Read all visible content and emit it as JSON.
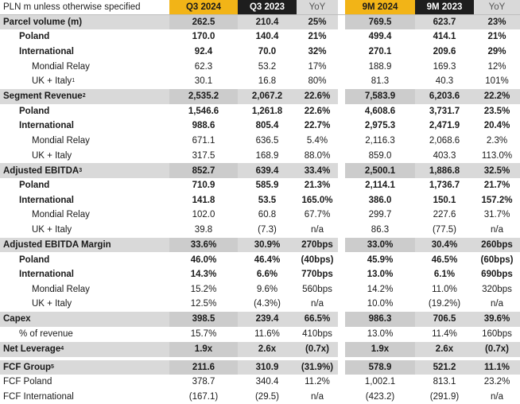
{
  "header": {
    "label": "PLN m unless otherwise specified",
    "q3_2024": "Q3 2024",
    "q3_2023": "Q3 2023",
    "yoy": "YoY",
    "m9_2024": "9M 2024",
    "m9_2023": "9M 2023",
    "yoy2": "YoY"
  },
  "rows": [
    {
      "kind": "section",
      "label": "Parcel volume (m)",
      "sup": "",
      "v": [
        "262.5",
        "210.4",
        "25%",
        "769.5",
        "623.7",
        "23%"
      ]
    },
    {
      "kind": "sub",
      "label": "Poland",
      "sup": "",
      "v": [
        "170.0",
        "140.4",
        "21%",
        "499.4",
        "414.1",
        "21%"
      ]
    },
    {
      "kind": "sub",
      "label": "International",
      "sup": "",
      "v": [
        "92.4",
        "70.0",
        "32%",
        "270.1",
        "209.6",
        "29%"
      ]
    },
    {
      "kind": "subsub",
      "label": "Mondial Relay",
      "sup": "",
      "v": [
        "62.3",
        "53.2",
        "17%",
        "188.9",
        "169.3",
        "12%"
      ]
    },
    {
      "kind": "subsub",
      "label": "UK + Italy",
      "sup": "1",
      "v": [
        "30.1",
        "16.8",
        "80%",
        "81.3",
        "40.3",
        "101%"
      ]
    },
    {
      "kind": "section",
      "label": "Segment Revenue",
      "sup": "2",
      "v": [
        "2,535.2",
        "2,067.2",
        "22.6%",
        "7,583.9",
        "6,203.6",
        "22.2%"
      ]
    },
    {
      "kind": "sub",
      "label": "Poland",
      "sup": "",
      "v": [
        "1,546.6",
        "1,261.8",
        "22.6%",
        "4,608.6",
        "3,731.7",
        "23.5%"
      ]
    },
    {
      "kind": "sub",
      "label": "International",
      "sup": "",
      "v": [
        "988.6",
        "805.4",
        "22.7%",
        "2,975.3",
        "2,471.9",
        "20.4%"
      ]
    },
    {
      "kind": "subsub",
      "label": "Mondial Relay",
      "sup": "",
      "v": [
        "671.1",
        "636.5",
        "5.4%",
        "2,116.3",
        "2,068.6",
        "2.3%"
      ]
    },
    {
      "kind": "subsub",
      "label": "UK + Italy",
      "sup": "",
      "v": [
        "317.5",
        "168.9",
        "88.0%",
        "859.0",
        "403.3",
        "113.0%"
      ]
    },
    {
      "kind": "section",
      "label": "Adjusted EBITDA",
      "sup": "3",
      "v": [
        "852.7",
        "639.4",
        "33.4%",
        "2,500.1",
        "1,886.8",
        "32.5%"
      ]
    },
    {
      "kind": "sub",
      "label": "Poland",
      "sup": "",
      "v": [
        "710.9",
        "585.9",
        "21.3%",
        "2,114.1",
        "1,736.7",
        "21.7%"
      ]
    },
    {
      "kind": "sub",
      "label": "International",
      "sup": "",
      "v": [
        "141.8",
        "53.5",
        "165.0%",
        "386.0",
        "150.1",
        "157.2%"
      ]
    },
    {
      "kind": "subsub",
      "label": "Mondial Relay",
      "sup": "",
      "v": [
        "102.0",
        "60.8",
        "67.7%",
        "299.7",
        "227.6",
        "31.7%"
      ]
    },
    {
      "kind": "subsub",
      "label": "UK + Italy",
      "sup": "",
      "v": [
        "39.8",
        "(7.3)",
        "n/a",
        "86.3",
        "(77.5)",
        "n/a"
      ]
    },
    {
      "kind": "section",
      "label": "Adjusted EBITDA Margin",
      "sup": "",
      "v": [
        "33.6%",
        "30.9%",
        "270bps",
        "33.0%",
        "30.4%",
        "260bps"
      ]
    },
    {
      "kind": "sub",
      "label": "Poland",
      "sup": "",
      "v": [
        "46.0%",
        "46.4%",
        "(40bps)",
        "45.9%",
        "46.5%",
        "(60bps)"
      ]
    },
    {
      "kind": "sub",
      "label": "International",
      "sup": "",
      "v": [
        "14.3%",
        "6.6%",
        "770bps",
        "13.0%",
        "6.1%",
        "690bps"
      ]
    },
    {
      "kind": "subsub",
      "label": "Mondial Relay",
      "sup": "",
      "v": [
        "15.2%",
        "9.6%",
        "560bps",
        "14.2%",
        "11.0%",
        "320bps"
      ]
    },
    {
      "kind": "subsub",
      "label": "UK + Italy",
      "sup": "",
      "v": [
        "12.5%",
        "(4.3%)",
        "n/a",
        "10.0%",
        "(19.2%)",
        "n/a"
      ]
    },
    {
      "kind": "section",
      "label": "Capex",
      "sup": "",
      "v": [
        "398.5",
        "239.4",
        "66.5%",
        "986.3",
        "706.5",
        "39.6%"
      ]
    },
    {
      "kind": "pct",
      "label": "% of revenue",
      "sup": "",
      "v": [
        "15.7%",
        "11.6%",
        "410bps",
        "13.0%",
        "11.4%",
        "160bps"
      ]
    },
    {
      "kind": "section",
      "label": "Net Leverage",
      "sup": "4",
      "v": [
        "1.9x",
        "2.6x",
        "(0.7x)",
        "1.9x",
        "2.6x",
        "(0.7x)"
      ]
    },
    {
      "kind": "section",
      "label": "FCF Group",
      "sup": "5",
      "v": [
        "211.6",
        "310.9",
        "(31.9%)",
        "578.9",
        "521.2",
        "11.1%"
      ]
    },
    {
      "kind": "plain",
      "label": "FCF Poland",
      "sup": "",
      "v": [
        "378.7",
        "340.4",
        "11.2%",
        "1,002.1",
        "813.1",
        "23.2%"
      ]
    },
    {
      "kind": "plain",
      "label": "FCF International",
      "sup": "",
      "v": [
        "(167.1)",
        "(29.5)",
        "n/a",
        "(423.2)",
        "(291.9)",
        "n/a"
      ]
    }
  ]
}
